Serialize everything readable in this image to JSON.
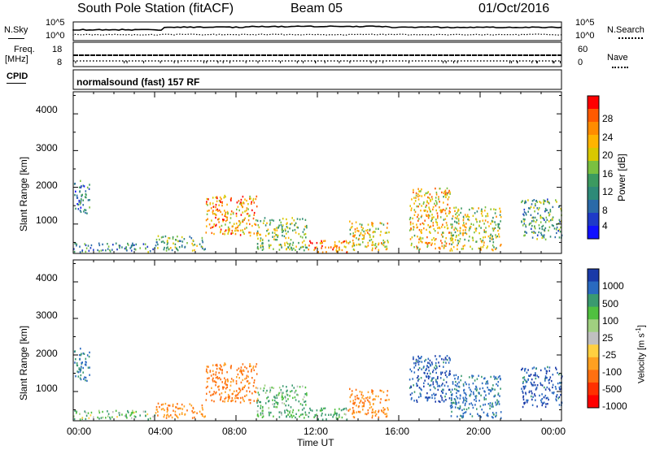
{
  "header": {
    "station": "South Pole Station (fitACF)",
    "beam": "Beam 05",
    "date": "01/Oct/2016"
  },
  "info_panels": {
    "nsky_label": "N.Sky",
    "nsky_ticks": [
      "10^5",
      "10^0"
    ],
    "nsearch_label": "N.Search",
    "nsearch_ticks": [
      "10^5",
      "10^0"
    ],
    "freq_label_1": "Freq.",
    "freq_label_2": "[MHz]",
    "freq_ticks": [
      "18",
      "8"
    ],
    "nave_label": "Nave",
    "nave_ticks": [
      "60",
      "0"
    ],
    "cpid_label": "CPID",
    "cpid_text": "normalsound (fast) 157 RF"
  },
  "chart_data": [
    {
      "type": "heatmap",
      "name": "power",
      "ylabel": "Slant Range [km]",
      "xlabel": "",
      "ylim": [
        200,
        4600
      ],
      "yticks": [
        "4000",
        "3000",
        "2000",
        "1000"
      ],
      "xlim": [
        0,
        24
      ],
      "colorbar": {
        "label": "Power [dB]",
        "ticks": [
          "28",
          "24",
          "20",
          "16",
          "12",
          "8",
          "4"
        ],
        "colors": [
          "#ff0000",
          "#ff5a00",
          "#ff8c00",
          "#ffb400",
          "#d8c800",
          "#7ac040",
          "#3c9a60",
          "#2e8a78",
          "#2a6aa8",
          "#1e3ac8",
          "#1010ff"
        ]
      },
      "scatter_regions": [
        {
          "t0": 0.0,
          "t1": 0.8,
          "r0": 1300,
          "r1": 2200,
          "v": 8
        },
        {
          "t0": 0.0,
          "t1": 4.0,
          "r0": 250,
          "r1": 500,
          "v": 10
        },
        {
          "t0": 4.0,
          "t1": 6.5,
          "r0": 300,
          "r1": 700,
          "v": 14
        },
        {
          "t0": 6.5,
          "t1": 9.0,
          "r0": 700,
          "r1": 1800,
          "v": 24
        },
        {
          "t0": 9.0,
          "t1": 11.5,
          "r0": 300,
          "r1": 1200,
          "v": 16
        },
        {
          "t0": 11.5,
          "t1": 13.5,
          "r0": 250,
          "r1": 600,
          "v": 26
        },
        {
          "t0": 13.5,
          "t1": 15.5,
          "r0": 300,
          "r1": 1100,
          "v": 20
        },
        {
          "t0": 16.5,
          "t1": 18.5,
          "r0": 300,
          "r1": 2000,
          "v": 22
        },
        {
          "t0": 18.5,
          "t1": 21.0,
          "r0": 300,
          "r1": 1500,
          "v": 18
        },
        {
          "t0": 22.0,
          "t1": 24.0,
          "r0": 600,
          "r1": 1700,
          "v": 12
        }
      ]
    },
    {
      "type": "heatmap",
      "name": "velocity",
      "ylabel": "Slant Range [km]",
      "xlabel": "Time UT",
      "ylim": [
        200,
        4600
      ],
      "yticks": [
        "4000",
        "3000",
        "2000",
        "1000"
      ],
      "xlim": [
        0,
        24
      ],
      "xticks": [
        "00:00",
        "04:00",
        "08:00",
        "12:00",
        "16:00",
        "20:00",
        "00:00"
      ],
      "colorbar": {
        "label": "Velocity [m s",
        "label_sup": "-1",
        "label_end": "]",
        "ticks": [
          "1000",
          "500",
          "100",
          "25",
          "-25",
          "-100",
          "-500",
          "-1000"
        ],
        "colors": [
          "#1a3aa8",
          "#2a6ac0",
          "#3a9a70",
          "#50c040",
          "#a0d080",
          "#c0c0c0",
          "#ffd040",
          "#ffa020",
          "#ff7010",
          "#ff3000",
          "#ff0000"
        ]
      },
      "scatter_regions": [
        {
          "t0": 0.0,
          "t1": 0.8,
          "r0": 1300,
          "r1": 2200,
          "v": 300
        },
        {
          "t0": 0.0,
          "t1": 4.0,
          "r0": 250,
          "r1": 500,
          "v": 50
        },
        {
          "t0": 4.0,
          "t1": 6.5,
          "r0": 300,
          "r1": 700,
          "v": -300
        },
        {
          "t0": 6.5,
          "t1": 9.0,
          "r0": 700,
          "r1": 1800,
          "v": -400
        },
        {
          "t0": 9.0,
          "t1": 11.5,
          "r0": 300,
          "r1": 1200,
          "v": 60
        },
        {
          "t0": 11.5,
          "t1": 13.5,
          "r0": 250,
          "r1": 600,
          "v": 80
        },
        {
          "t0": 13.5,
          "t1": 15.5,
          "r0": 300,
          "r1": 1100,
          "v": -300
        },
        {
          "t0": 16.5,
          "t1": 18.5,
          "r0": 700,
          "r1": 2000,
          "v": 600
        },
        {
          "t0": 18.5,
          "t1": 21.0,
          "r0": 300,
          "r1": 1500,
          "v": 400
        },
        {
          "t0": 22.0,
          "t1": 24.0,
          "r0": 600,
          "r1": 1700,
          "v": 700
        }
      ]
    }
  ]
}
